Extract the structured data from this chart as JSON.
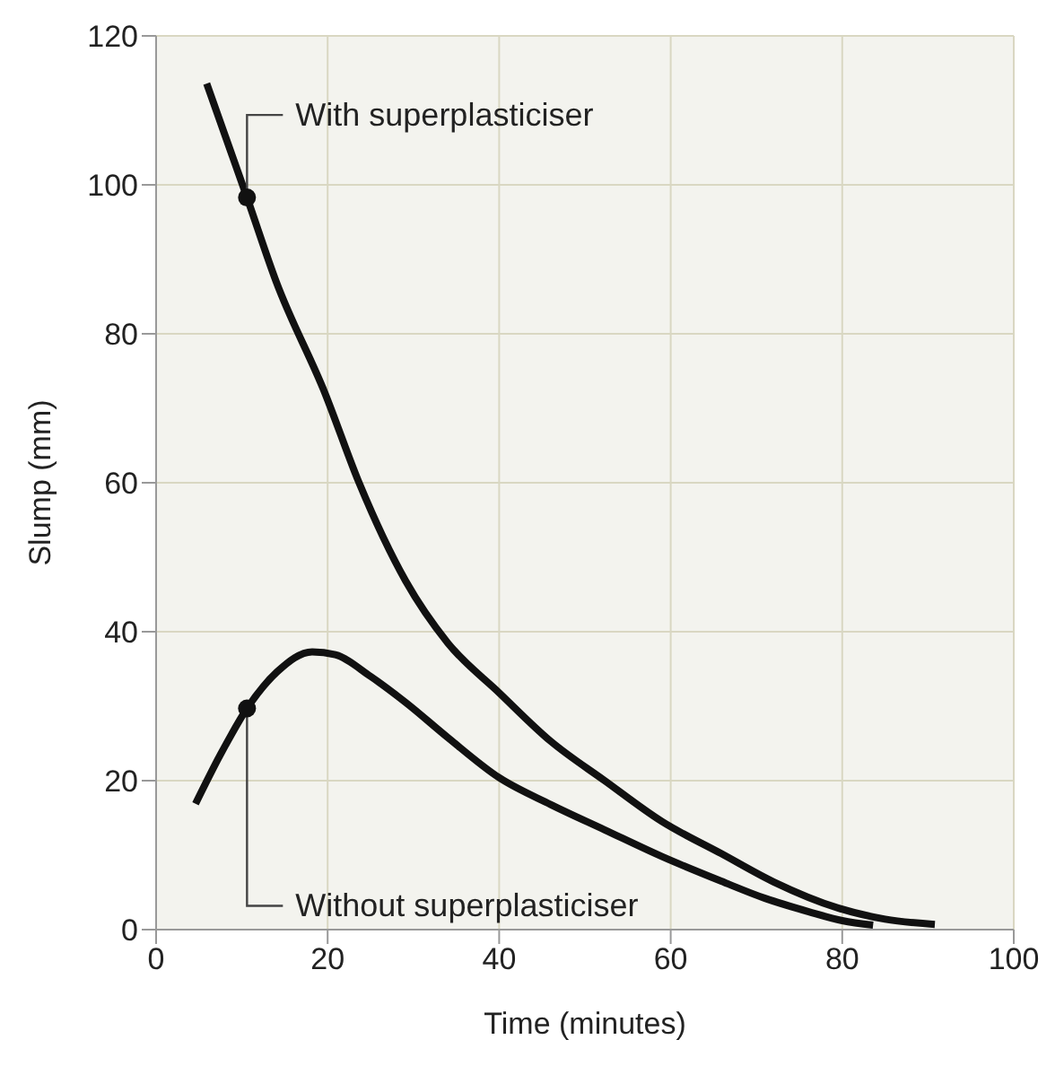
{
  "chart_data": {
    "type": "line",
    "xlabel": "Time (minutes)",
    "ylabel": "Slump (mm)",
    "xlim": [
      0,
      100
    ],
    "xticks": [
      0,
      20,
      40,
      60,
      80,
      100
    ],
    "ylim": [
      0,
      120
    ],
    "yticks": [
      0,
      20,
      40,
      60,
      80,
      100,
      120
    ],
    "grid": true,
    "marker": "none",
    "line_style": "solid",
    "series": [
      {
        "color": "#111111",
        "x": [
          5.9,
          10.6,
          14,
          19.7,
          23.7,
          29.1,
          34,
          40,
          46,
          52.3,
          59,
          65.9,
          72,
          79.5,
          85,
          90.8
        ],
        "values": [
          113.6,
          98.3,
          87,
          72,
          59.9,
          46.8,
          38.5,
          31.8,
          25.3,
          20,
          14.5,
          10.2,
          6.4,
          2.9,
          1.4,
          0.7
        ]
      },
      {
        "color": "#111111",
        "x": [
          4.6,
          7.5,
          10.6,
          14.1,
          18.2,
          20.9,
          25,
          29.1,
          34,
          40,
          46,
          52.3,
          59,
          65.9,
          71,
          76.1,
          80,
          83.6
        ],
        "values": [
          16.9,
          23.5,
          29.7,
          34.6,
          37.3,
          36.9,
          34,
          30.5,
          25.8,
          20.4,
          16.8,
          13.4,
          9.8,
          6.5,
          4.2,
          2.4,
          1.2,
          0.6
        ]
      }
    ],
    "annotations": [
      {
        "text": "With superplasticiser",
        "x": 10.6,
        "y": 98.3
      },
      {
        "text": "Without superplasticiser",
        "x": 10.6,
        "y": 29.7
      }
    ]
  }
}
